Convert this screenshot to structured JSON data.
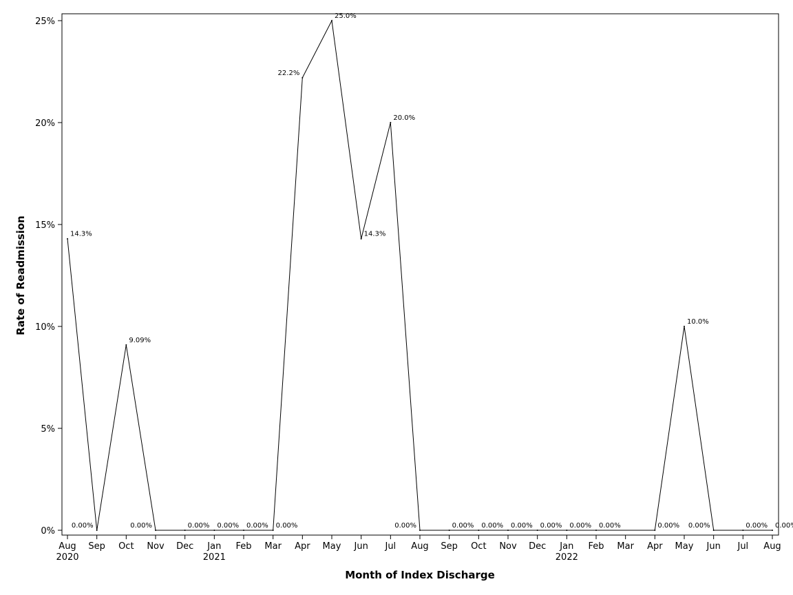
{
  "chart_data": {
    "type": "line",
    "title": "",
    "xlabel": "Month of Index Discharge",
    "ylabel": "Rate of Readmission",
    "ylim": [
      0,
      25
    ],
    "yticks": [
      {
        "value": 0,
        "label": "0%"
      },
      {
        "value": 5,
        "label": "5%"
      },
      {
        "value": 10,
        "label": "10%"
      },
      {
        "value": 15,
        "label": "15%"
      },
      {
        "value": 20,
        "label": "20%"
      },
      {
        "value": 25,
        "label": "25%"
      }
    ],
    "categories": [
      "Aug",
      "Sep",
      "Oct",
      "Nov",
      "Dec",
      "Jan",
      "Feb",
      "Mar",
      "Apr",
      "May",
      "Jun",
      "Jul",
      "Aug",
      "Sep",
      "Oct",
      "Nov",
      "Dec",
      "Jan",
      "Feb",
      "Mar",
      "Apr",
      "May",
      "Jun",
      "Jul",
      "Aug"
    ],
    "year_labels": [
      {
        "index": 0,
        "label": "2020"
      },
      {
        "index": 5,
        "label": "2021"
      },
      {
        "index": 17,
        "label": "2022"
      }
    ],
    "series": [
      {
        "values": [
          14.3,
          0,
          9.09,
          0,
          0,
          0,
          0,
          0,
          22.2,
          25.0,
          14.3,
          20.0,
          0,
          0,
          0,
          0,
          0,
          0,
          0,
          null,
          0,
          10.0,
          0,
          0,
          0
        ],
        "labels": [
          "14.3%",
          "0.00%",
          "9.09%",
          "0.00%",
          "0.00%",
          "0.00%",
          "0.00%",
          "0.00%",
          "22.2%",
          "25.0%",
          "14.3%",
          "20.0%",
          "0.00%",
          "0.00%",
          "0.00%",
          "0.00%",
          "0.00%",
          "0.00%",
          "0.00%",
          "",
          "0.00%",
          "10.0%",
          "0.00%",
          "0.00%",
          "0.00%"
        ]
      }
    ],
    "grid": false,
    "line_color": "#000000"
  }
}
